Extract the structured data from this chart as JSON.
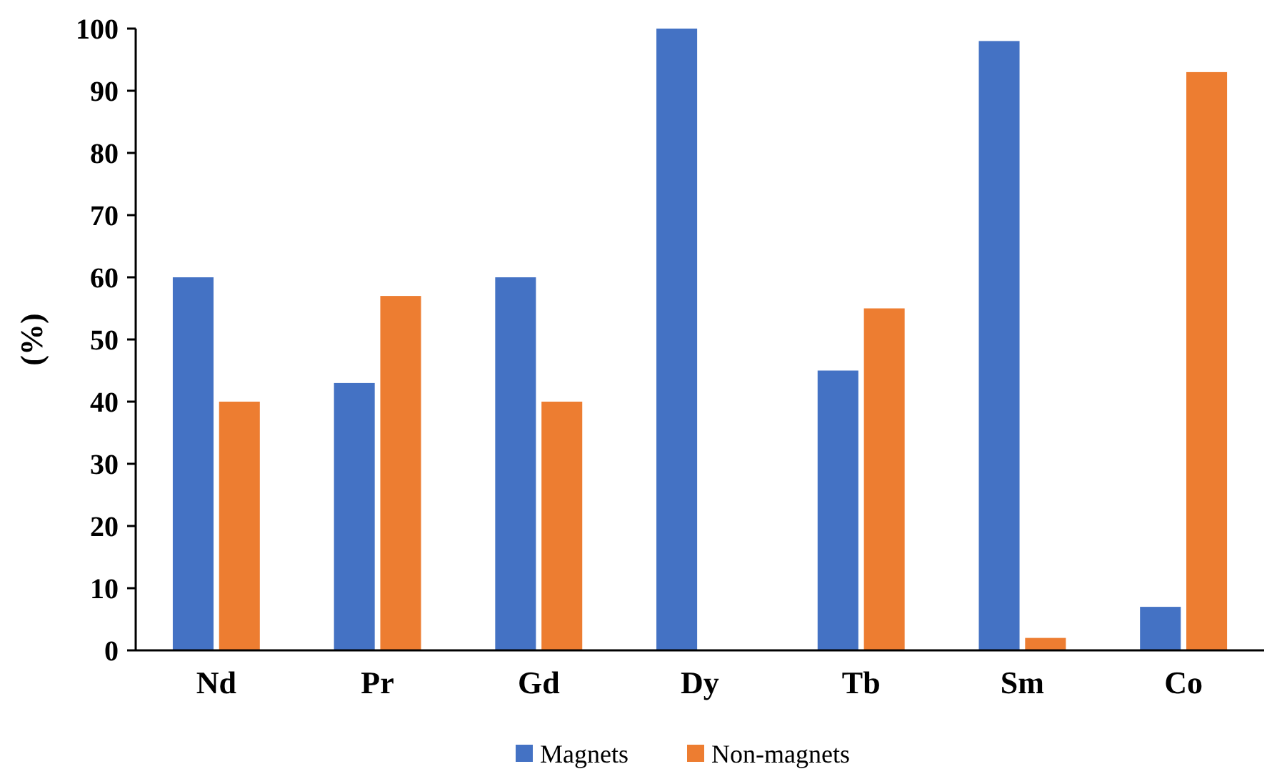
{
  "chart_data": {
    "type": "bar",
    "ylabel": "(%)",
    "categories": [
      "Nd",
      "Pr",
      "Gd",
      "Dy",
      "Tb",
      "Sm",
      "Co"
    ],
    "series": [
      {
        "name": "Magnets",
        "color": "#4472c4",
        "values": [
          60,
          43,
          60,
          100,
          45,
          98,
          7
        ]
      },
      {
        "name": "Non-magnets",
        "color": "#ed7d31",
        "values": [
          40,
          57,
          40,
          0,
          55,
          2,
          93
        ]
      }
    ],
    "ylim": [
      0,
      100
    ],
    "yticks": [
      0,
      10,
      20,
      30,
      40,
      50,
      60,
      70,
      80,
      90,
      100
    ],
    "grid": false,
    "legend": "bottom"
  }
}
